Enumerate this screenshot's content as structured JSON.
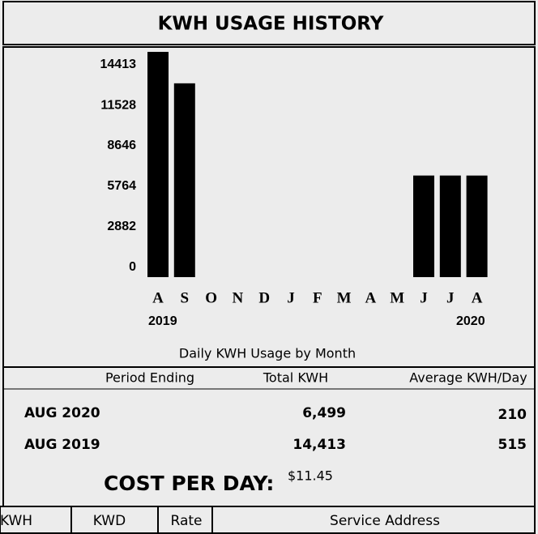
{
  "chart_data": {
    "type": "bar",
    "title": "KWH USAGE HISTORY",
    "x_label": "Daily KWH Usage by Month",
    "categories": [
      "A",
      "S",
      "O",
      "N",
      "D",
      "J",
      "F",
      "M",
      "A",
      "M",
      "J",
      "J",
      "A"
    ],
    "years": [
      "2019",
      "2020"
    ],
    "values": [
      14413,
      12400,
      null,
      null,
      null,
      null,
      null,
      null,
      null,
      null,
      6500,
      6500,
      6499
    ],
    "color": "#000000",
    "ylim": [
      0,
      14413
    ],
    "yticks": [
      0,
      2882,
      5764,
      8646,
      11528,
      14413
    ]
  },
  "table": {
    "headers": [
      "Period Ending",
      "Total KWH",
      "Average KWH/Day"
    ],
    "rows": [
      [
        "AUG 2020",
        "6,499",
        "210"
      ],
      [
        "AUG 2019",
        "14,413",
        "515"
      ]
    ]
  },
  "cost": {
    "label": "COST PER DAY:",
    "value": "$11.45"
  },
  "tabs": [
    "KWH",
    "KWD",
    "Rate",
    "Service Address"
  ]
}
